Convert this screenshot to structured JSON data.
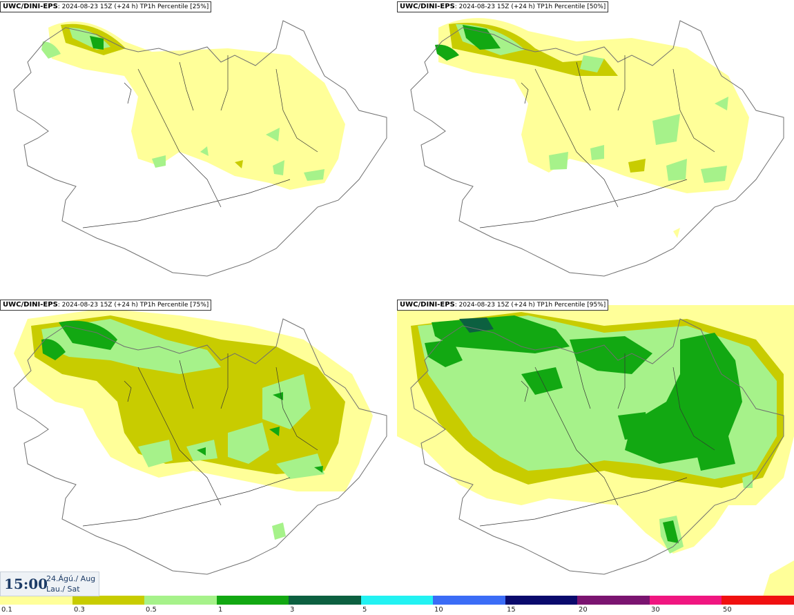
{
  "panels": [
    {
      "model": "UWC/DINI-EPS",
      "run": "2024-08-23 15Z (+24 h)",
      "field": "TP1h Percentile",
      "percentile": "[25%]"
    },
    {
      "model": "UWC/DINI-EPS",
      "run": "2024-08-23 15Z (+24 h)",
      "field": "TP1h Percentile",
      "percentile": "[50%]"
    },
    {
      "model": "UWC/DINI-EPS",
      "run": "2024-08-23 15Z (+24 h)",
      "field": "TP1h Percentile",
      "percentile": "[75%]"
    },
    {
      "model": "UWC/DINI-EPS",
      "run": "2024-08-23 15Z (+24 h)",
      "field": "TP1h Percentile",
      "percentile": "[95%]"
    }
  ],
  "timestamp": {
    "time": "15:00",
    "date_line1": "24.Ágú./ Aug",
    "date_line2": "Lau./ Sat"
  },
  "legend": {
    "labels": [
      "0.1",
      "0.3",
      "0.5",
      "1",
      "3",
      "5",
      "10",
      "15",
      "20",
      "30",
      "50"
    ],
    "colors": [
      "#ffff99",
      "#c8cc00",
      "#a6f28a",
      "#12a812",
      "#0c6040",
      "#22f2f2",
      "#3b6cf6",
      "#0a0a6c",
      "#7a1470",
      "#f01680",
      "#f01010"
    ]
  },
  "map_colors": {
    "outline": "#6f6f6f",
    "rivers": "#333333"
  }
}
